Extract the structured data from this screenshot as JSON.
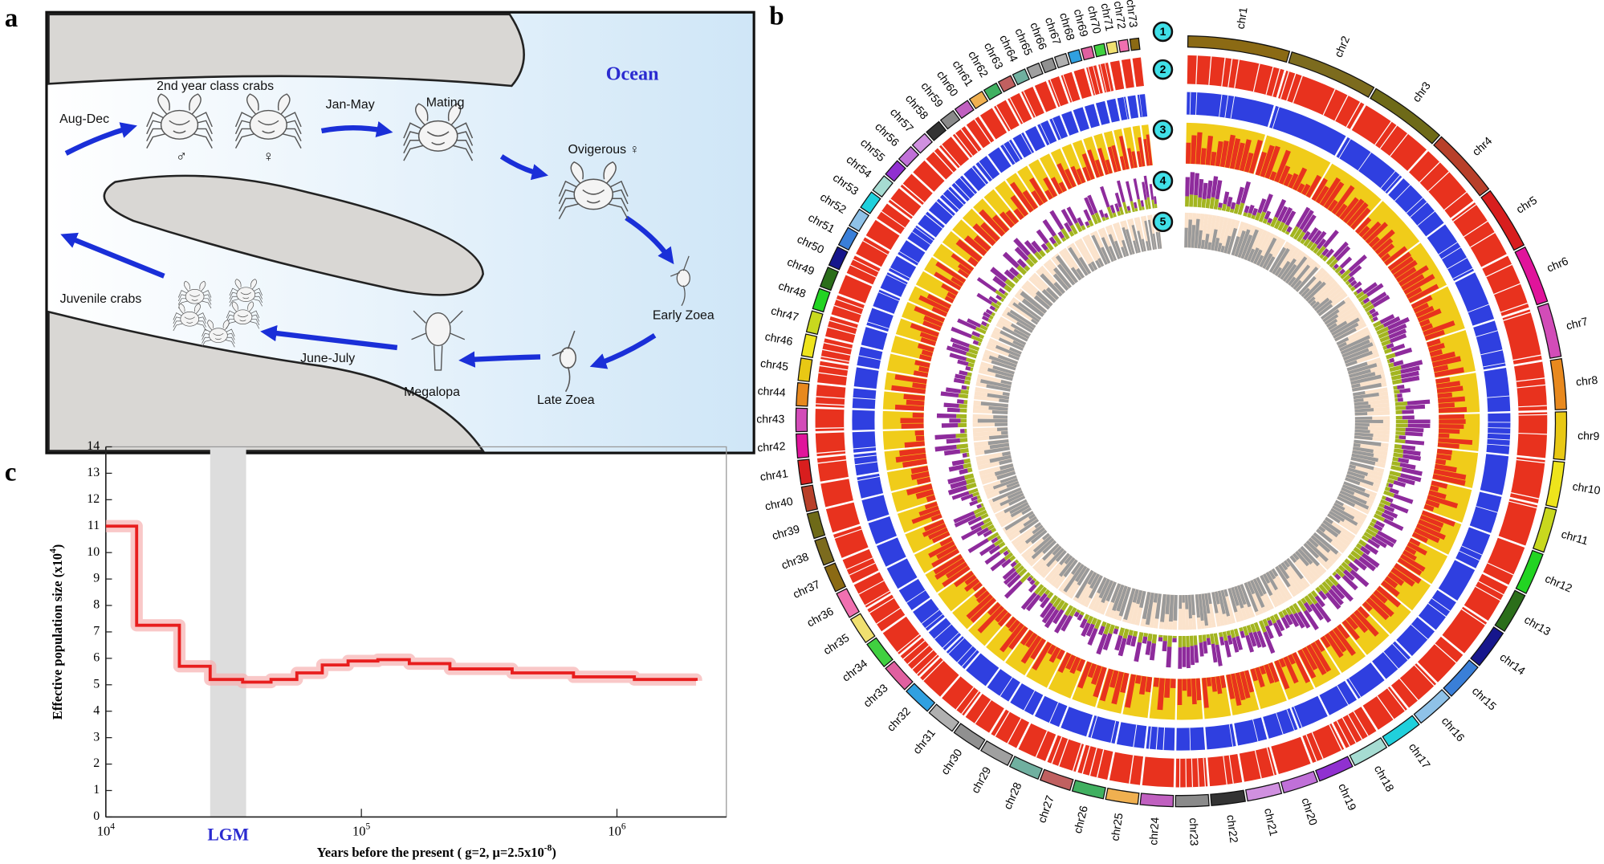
{
  "panel_labels": [
    "a",
    "b",
    "c"
  ],
  "life_cycle": {
    "labels": [
      "2nd year class crabs",
      "Aug-Dec",
      "Jan-May",
      "Mating",
      "Ocean",
      "Ovigerous ♀",
      "Early Zoea",
      "Late Zoea",
      "Megalopa",
      "June-July",
      "Juvenile crabs",
      "♂",
      "♀"
    ]
  },
  "circos": {
    "chromosomes": [
      "chr1",
      "chr2",
      "chr3",
      "chr4",
      "chr5",
      "chr6",
      "chr7",
      "chr8",
      "chr9",
      "chr10",
      "chr11",
      "chr12",
      "chr13",
      "chr14",
      "chr15",
      "chr16",
      "chr17",
      "chr18",
      "chr19",
      "chr20",
      "chr21",
      "chr22",
      "chr23",
      "chr24",
      "chr25",
      "chr26",
      "chr27",
      "chr28",
      "chr29",
      "chr30",
      "chr31",
      "chr32",
      "chr33",
      "chr34",
      "chr35",
      "chr36",
      "chr37",
      "chr38",
      "chr39",
      "chr40",
      "chr41",
      "chr42",
      "chr43",
      "chr44",
      "chr45",
      "chr46",
      "chr47",
      "chr48",
      "chr49",
      "chr50",
      "chr51",
      "chr52",
      "chr53",
      "chr54",
      "chr55",
      "chr56",
      "chr57",
      "chr58",
      "chr59",
      "chr60",
      "chr61",
      "chr62",
      "chr63",
      "chr64",
      "chr65",
      "chr66",
      "chr67",
      "chr68",
      "chr69",
      "chr70",
      "chr71",
      "chr72",
      "chr73"
    ],
    "chromosome_colors": [
      "#8b6a14",
      "#7c6b1e",
      "#6e6a18",
      "#b8402a",
      "#d81e1e",
      "#e0149b",
      "#d24cb8",
      "#e8891e",
      "#e8c814",
      "#eee41c",
      "#c8d81e",
      "#22d422",
      "#2b6e1a",
      "#16168c",
      "#3a7fd8",
      "#8fc2e8",
      "#20d0dc",
      "#a6dcd2",
      "#9030d0",
      "#c070d8",
      "#d090e0",
      "#333333",
      "#8a8a8a",
      "#c060c0",
      "#f0b050",
      "#40b060",
      "#c06060",
      "#70b0a0",
      "#a0a0a0",
      "#909090",
      "#b0b0b0",
      "#30a0e0",
      "#e060a0",
      "#40d040",
      "#f0e070",
      "#f070b0"
    ],
    "track_numbers": [
      "1",
      "2",
      "3",
      "4",
      "5"
    ],
    "track_colors": {
      "red": "#e8321e",
      "blue": "#2f3fe0",
      "yellow": "#f0cc1a",
      "purple": "#8e2b9c",
      "green": "#a3b520",
      "gray": "#9a9a9a",
      "peach": "#fbe3cc",
      "marker": "#40e0e8"
    }
  },
  "chart_data": {
    "type": "line",
    "step": "post",
    "ylabel": {
      "text": "Effective population size (x10",
      "sup": "4",
      "end": ")"
    },
    "xlabel": {
      "text": "Years before the present ( g=2, μ=2.5x10",
      "sup": "-8",
      "end": ")"
    },
    "x": [
      10000,
      13200,
      19400,
      25600,
      34300,
      44300,
      55900,
      70300,
      88700,
      116000,
      154000,
      222000,
      389000,
      676000,
      1170000,
      2040000
    ],
    "values": [
      11,
      7.25,
      5.7,
      5.2,
      5.1,
      5.2,
      5.45,
      5.75,
      5.9,
      5.95,
      5.8,
      5.6,
      5.45,
      5.3,
      5.2,
      5.15
    ],
    "color": "#e81e1e",
    "xscale": "log",
    "xlim": [
      10000,
      2680000
    ],
    "ylim": [
      0,
      14
    ],
    "xticks": [
      {
        "value": 10000,
        "label": "10",
        "exponent": "4"
      },
      {
        "value": 100000,
        "label": "10",
        "exponent": "5"
      },
      {
        "value": 1000000,
        "label": "10",
        "exponent": "6"
      }
    ],
    "yticks": [
      0,
      1,
      2,
      3,
      4,
      5,
      6,
      7,
      8,
      9,
      10,
      11,
      12,
      13,
      14
    ],
    "shaded_region": {
      "label": "LGM",
      "xrange": [
        25600,
        35400
      ],
      "color": "#dddddd",
      "label_color": "#2b2bd0"
    }
  }
}
